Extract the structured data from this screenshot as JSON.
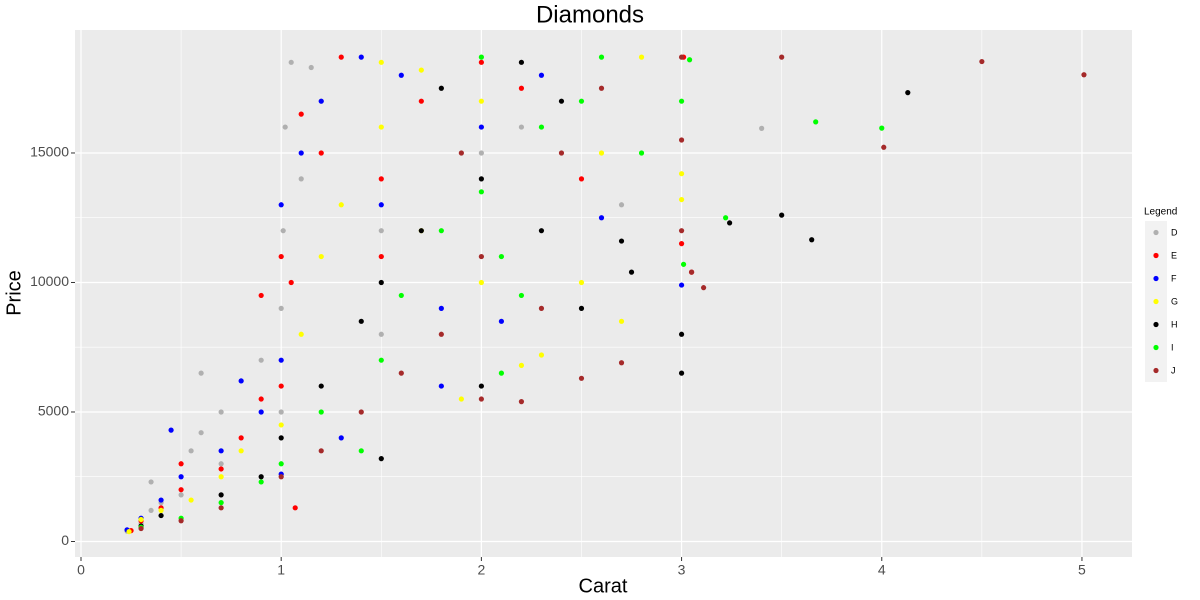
{
  "chart_data": {
    "type": "scatter",
    "title": "Diamonds",
    "x_label": "Carat",
    "y_label": "Price",
    "legend_title": "Legend",
    "legend_position": "right",
    "grid": true,
    "xlim": [
      -0.03,
      5.25
    ],
    "xticks": [
      0,
      1,
      2,
      3,
      4,
      5
    ],
    "ylim": [
      -599,
      19748
    ],
    "yticks": [
      0,
      5000,
      10000,
      15000
    ],
    "series": [
      {
        "name": "D",
        "color": "#b0b0b0",
        "x": [
          0.23,
          0.3,
          0.35,
          0.4,
          0.5,
          0.55,
          0.6,
          0.7,
          0.7,
          0.9,
          1.0,
          1.0,
          1.01,
          1.02,
          1.05,
          1.1,
          1.15,
          1.2,
          1.5,
          1.5,
          2.0,
          2.2,
          2.7,
          3.4,
          0.35,
          0.6
        ],
        "values": [
          400,
          700,
          1200,
          1500,
          1800,
          3500,
          4200,
          3000,
          5000,
          7000,
          5000,
          9000,
          12000,
          16000,
          18500,
          14000,
          18300,
          17000,
          8000,
          12000,
          15000,
          16000,
          13000,
          15950,
          2300,
          6500
        ]
      },
      {
        "name": "E",
        "color": "#ff0000",
        "x": [
          0.25,
          0.3,
          0.4,
          0.5,
          0.5,
          0.7,
          0.8,
          0.9,
          1.0,
          1.0,
          1.05,
          1.1,
          1.2,
          1.3,
          1.5,
          1.5,
          1.7,
          2.0,
          2.2,
          2.5,
          3.0,
          3.05,
          3.01,
          1.07,
          0.9
        ],
        "values": [
          420,
          800,
          1300,
          2000,
          3000,
          2800,
          4000,
          5500,
          6000,
          11000,
          10000,
          16500,
          15000,
          18700,
          11000,
          14000,
          17000,
          18500,
          17500,
          14000,
          11500,
          10400,
          18700,
          1300,
          9500
        ]
      },
      {
        "name": "F",
        "color": "#0000ff",
        "x": [
          0.23,
          0.3,
          0.4,
          0.45,
          0.5,
          0.7,
          0.8,
          0.9,
          1.0,
          1.0,
          1.1,
          1.2,
          1.4,
          1.5,
          1.6,
          1.8,
          2.0,
          2.1,
          2.3,
          2.6,
          3.0,
          1.0,
          1.8,
          1.3
        ],
        "values": [
          450,
          900,
          1600,
          4300,
          2500,
          3500,
          6200,
          5000,
          7000,
          13000,
          15000,
          17000,
          18700,
          13000,
          18000,
          9000,
          16000,
          8500,
          18000,
          12500,
          9900,
          2600,
          6000,
          4000
        ]
      },
      {
        "name": "G",
        "color": "#ffff00",
        "x": [
          0.24,
          0.3,
          0.4,
          0.55,
          0.7,
          0.8,
          1.0,
          1.1,
          1.2,
          1.3,
          1.5,
          1.5,
          1.7,
          1.7,
          2.0,
          2.0,
          2.2,
          2.3,
          2.5,
          2.6,
          2.8,
          3.0,
          3.0,
          2.7,
          1.9
        ],
        "values": [
          380,
          850,
          1200,
          1600,
          2500,
          3500,
          4500,
          8000,
          11000,
          13000,
          16000,
          18500,
          12000,
          18200,
          17000,
          10000,
          6800,
          7200,
          10000,
          15000,
          18700,
          14200,
          13200,
          8500,
          5500
        ]
      },
      {
        "name": "H",
        "color": "#000000",
        "x": [
          0.3,
          0.4,
          0.7,
          0.9,
          1.0,
          1.2,
          1.4,
          1.5,
          1.5,
          1.7,
          1.8,
          2.0,
          2.0,
          2.2,
          2.4,
          2.5,
          2.75,
          2.7,
          3.0,
          3.0,
          3.24,
          3.5,
          3.65,
          4.13,
          2.3
        ],
        "values": [
          600,
          1000,
          1800,
          2500,
          4000,
          6000,
          8500,
          3200,
          10000,
          12000,
          17500,
          14000,
          6000,
          18500,
          17000,
          9000,
          10400,
          11600,
          6500,
          8000,
          12300,
          12600,
          11650,
          17330,
          12000
        ]
      },
      {
        "name": "I",
        "color": "#00ff00",
        "x": [
          0.3,
          0.5,
          0.7,
          0.9,
          1.0,
          1.2,
          1.5,
          1.6,
          1.8,
          2.0,
          2.0,
          2.1,
          2.3,
          2.5,
          2.6,
          2.8,
          3.0,
          3.04,
          3.01,
          3.22,
          3.67,
          4.0,
          2.1,
          1.4,
          2.2
        ],
        "values": [
          550,
          900,
          1500,
          2300,
          3000,
          5000,
          7000,
          9500,
          12000,
          13500,
          18700,
          11000,
          16000,
          17000,
          18700,
          15000,
          17000,
          18600,
          10700,
          12500,
          16200,
          15960,
          6500,
          3500,
          9500
        ]
      },
      {
        "name": "J",
        "color": "#a52a2a",
        "x": [
          0.3,
          0.5,
          0.7,
          1.0,
          1.2,
          1.4,
          1.6,
          1.8,
          2.0,
          2.0,
          2.2,
          2.3,
          2.4,
          2.5,
          2.6,
          2.7,
          3.0,
          3.0,
          3.0,
          3.05,
          3.11,
          3.5,
          4.01,
          4.5,
          5.01,
          1.9
        ],
        "values": [
          500,
          800,
          1300,
          2500,
          3500,
          5000,
          6500,
          8000,
          5500,
          11000,
          5400,
          9000,
          15000,
          6300,
          17500,
          6900,
          15500,
          12000,
          18700,
          10400,
          9800,
          18700,
          15220,
          18530,
          18020,
          15000
        ]
      }
    ]
  }
}
